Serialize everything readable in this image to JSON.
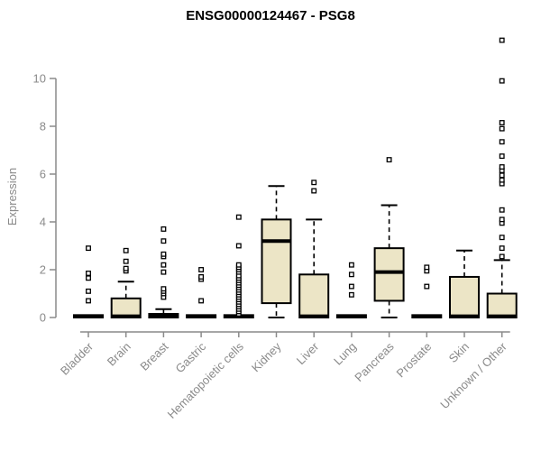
{
  "chart_data": {
    "type": "boxplot",
    "title": "ENSG00000124467 - PSG8",
    "ylabel": "Expression",
    "xlabel": "",
    "y_ticks": [
      0,
      2,
      4,
      6,
      8,
      10
    ],
    "ylim": [
      0,
      11.8
    ],
    "grid": false,
    "legend": "none",
    "colors": {
      "box_fill": "#ece5c6",
      "box_stroke": "#000000",
      "median": "#000000",
      "whisker": "#000000",
      "outlier_stroke": "#000000",
      "outlier_fill": "#ffffff",
      "axis": "#8a8a8a",
      "tick_label": "#8a8a8a",
      "title": "#000000"
    },
    "categories": [
      "Bladder",
      "Brain",
      "Breast",
      "Gastric",
      "Hematopoietic cells",
      "Kidney",
      "Liver",
      "Lung",
      "Pancreas",
      "Prostate",
      "Skin",
      "Unknown / Other"
    ],
    "series": [
      {
        "category": "Bladder",
        "min": 0,
        "q1": 0,
        "median": 0.05,
        "q3": 0.1,
        "max": 0.1,
        "outliers": [
          0.7,
          1.1,
          1.65,
          1.85,
          2.9
        ]
      },
      {
        "category": "Brain",
        "min": 0,
        "q1": 0,
        "median": 0.05,
        "q3": 0.8,
        "max": 1.5,
        "outliers": [
          1.95,
          2.05,
          2.35,
          2.8
        ]
      },
      {
        "category": "Breast",
        "min": 0,
        "q1": 0,
        "median": 0.05,
        "q3": 0.15,
        "max": 0.35,
        "outliers": [
          0.85,
          1.0,
          1.1,
          1.2,
          1.9,
          2.2,
          2.55,
          2.65,
          3.2,
          3.7
        ]
      },
      {
        "category": "Gastric",
        "min": 0,
        "q1": 0,
        "median": 0.05,
        "q3": 0.1,
        "max": 0.1,
        "outliers": [
          0.7,
          1.6,
          1.7,
          2.0
        ]
      },
      {
        "category": "Hematopoietic cells",
        "min": 0,
        "q1": 0,
        "median": 0.05,
        "q3": 0.1,
        "max": 0.1,
        "outliers": [
          0.15,
          0.25,
          0.35,
          0.45,
          0.55,
          0.65,
          0.75,
          0.85,
          0.95,
          1.05,
          1.15,
          1.25,
          1.35,
          1.45,
          1.55,
          1.65,
          1.75,
          1.9,
          2.0,
          2.1,
          2.2,
          3.0,
          4.2
        ]
      },
      {
        "category": "Kidney",
        "min": 0,
        "q1": 0.6,
        "median": 3.2,
        "q3": 4.1,
        "max": 5.5,
        "outliers": []
      },
      {
        "category": "Liver",
        "min": 0,
        "q1": 0,
        "median": 0.05,
        "q3": 1.8,
        "max": 4.1,
        "outliers": [
          5.3,
          5.65
        ]
      },
      {
        "category": "Lung",
        "min": 0,
        "q1": 0,
        "median": 0.05,
        "q3": 0.1,
        "max": 0.1,
        "outliers": [
          0.95,
          1.3,
          1.8,
          2.2
        ]
      },
      {
        "category": "Pancreas",
        "min": 0,
        "q1": 0.7,
        "median": 1.9,
        "q3": 2.9,
        "max": 4.7,
        "outliers": [
          6.6
        ]
      },
      {
        "category": "Prostate",
        "min": 0,
        "q1": 0,
        "median": 0.05,
        "q3": 0.1,
        "max": 0.1,
        "outliers": [
          1.3,
          1.95,
          2.1
        ]
      },
      {
        "category": "Skin",
        "min": 0,
        "q1": 0,
        "median": 0.05,
        "q3": 1.7,
        "max": 2.8,
        "outliers": []
      },
      {
        "category": "Unknown / Other",
        "min": 0,
        "q1": 0,
        "median": 0.05,
        "q3": 1.0,
        "max": 2.4,
        "outliers": [
          2.55,
          2.9,
          3.35,
          3.95,
          4.1,
          4.5,
          5.6,
          5.75,
          5.95,
          6.15,
          6.3,
          6.75,
          7.35,
          7.9,
          8.15,
          9.9,
          11.6
        ]
      }
    ]
  }
}
